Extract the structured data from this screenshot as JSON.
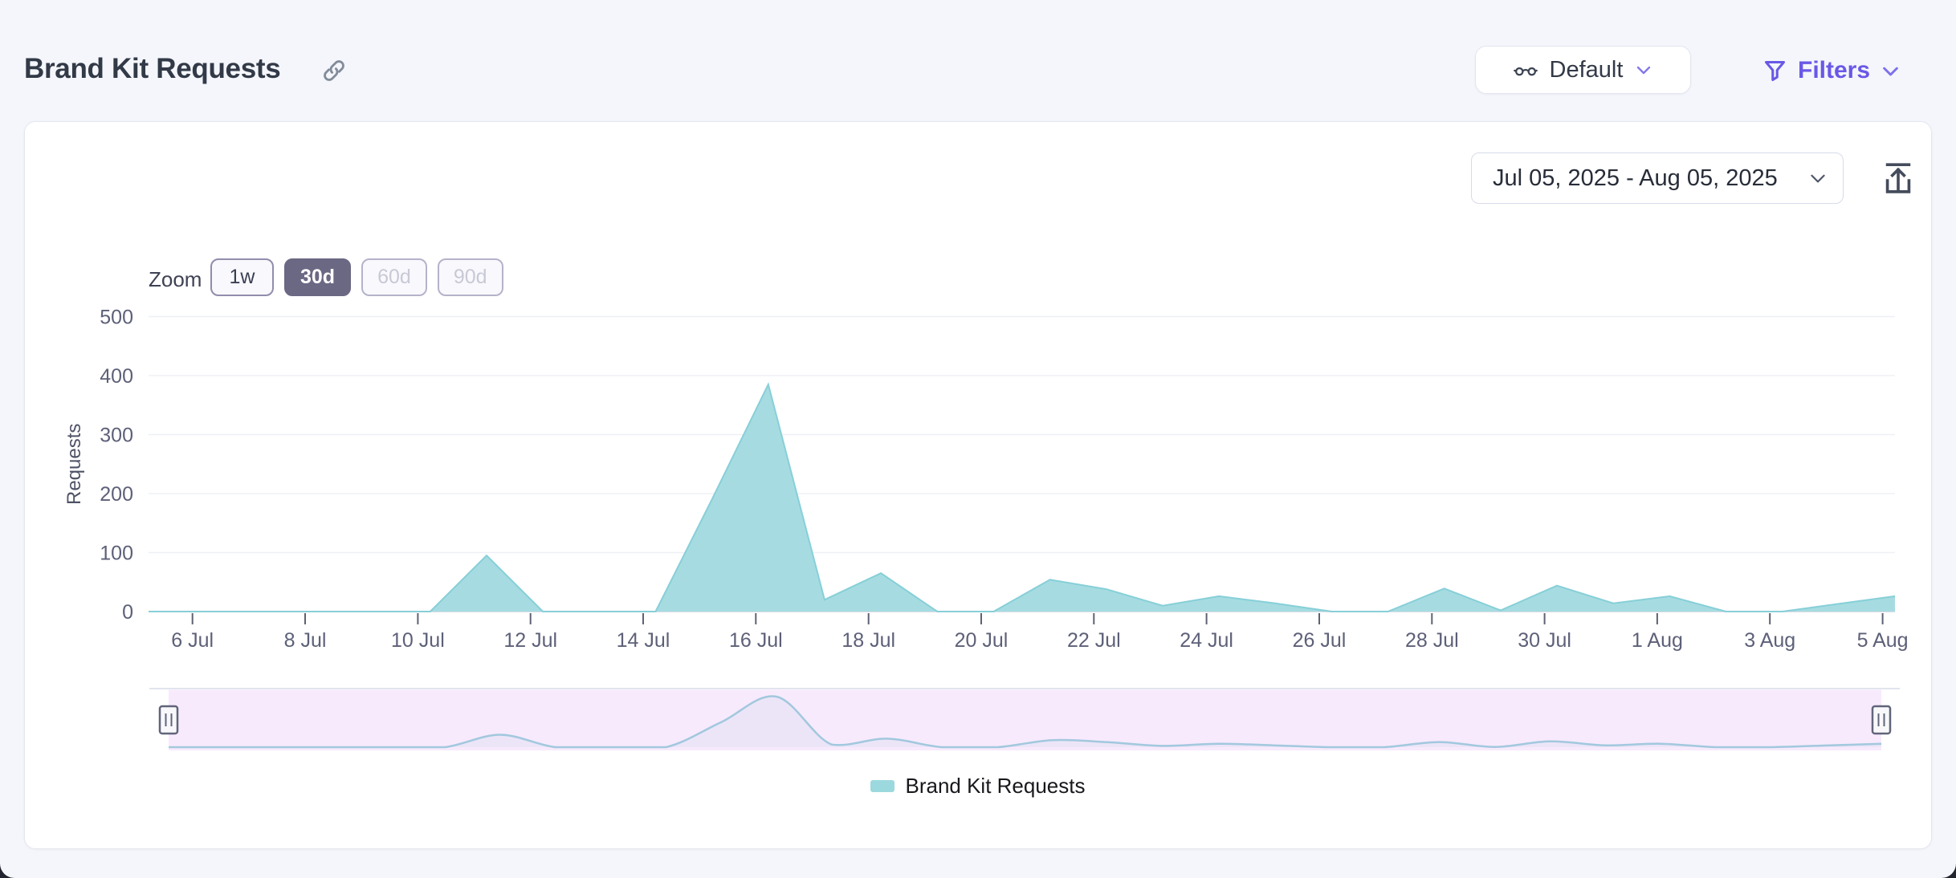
{
  "header": {
    "title": "Brand Kit Requests",
    "link_icon": "link-icon",
    "view_selector": {
      "icon": "glasses-icon",
      "label": "Default"
    },
    "filters": {
      "icon": "funnel-icon",
      "label": "Filters"
    }
  },
  "toolbar": {
    "date_range": "Jul 05, 2025 - Aug 05, 2025",
    "export_icon": "export-icon"
  },
  "zoom_controls": {
    "label": "Zoom",
    "options": [
      {
        "label": "1w",
        "state": "default"
      },
      {
        "label": "30d",
        "state": "selected"
      },
      {
        "label": "60d",
        "state": "disabled"
      },
      {
        "label": "90d",
        "state": "disabled"
      }
    ]
  },
  "legend": {
    "series_label": "Brand Kit Requests",
    "swatch_color": "#9cd9de"
  },
  "chart_data": {
    "type": "area",
    "title": "Brand Kit Requests",
    "series": [
      {
        "name": "Brand Kit Requests",
        "values": [
          0,
          0,
          0,
          0,
          0,
          0,
          95,
          0,
          0,
          0,
          190,
          385,
          20,
          65,
          0,
          0,
          54,
          38,
          10,
          26,
          14,
          0,
          0,
          39,
          2,
          44,
          14,
          26,
          0,
          0,
          13,
          26
        ]
      }
    ],
    "x": [
      "Jul 5",
      "Jul 6",
      "Jul 7",
      "Jul 8",
      "Jul 9",
      "Jul 10",
      "Jul 11",
      "Jul 12",
      "Jul 13",
      "Jul 14",
      "Jul 15",
      "Jul 16",
      "Jul 17",
      "Jul 18",
      "Jul 19",
      "Jul 20",
      "Jul 21",
      "Jul 22",
      "Jul 23",
      "Jul 24",
      "Jul 25",
      "Jul 26",
      "Jul 27",
      "Jul 28",
      "Jul 29",
      "Jul 30",
      "Jul 31",
      "Aug 1",
      "Aug 2",
      "Aug 3",
      "Aug 4",
      "Aug 5"
    ],
    "xtick_labels": [
      "6 Jul",
      "8 Jul",
      "10 Jul",
      "12 Jul",
      "14 Jul",
      "16 Jul",
      "18 Jul",
      "20 Jul",
      "22 Jul",
      "24 Jul",
      "26 Jul",
      "28 Jul",
      "30 Jul",
      "1 Aug",
      "3 Aug",
      "5 Aug"
    ],
    "xlabel": "",
    "ylabel": "Requests",
    "ylim": [
      0,
      500
    ],
    "yticks": [
      0,
      100,
      200,
      300,
      400,
      500
    ],
    "grid": true,
    "legend_position": "bottom",
    "navigator": true,
    "date_range_start": "Jul 05, 2025",
    "date_range_end": "Aug 05, 2025",
    "colors": {
      "area_fill": "#a6dce1",
      "area_line": "#87cfd8",
      "navigator_line": "#a2c8de",
      "navigator_selection": "#f7eafc",
      "grid_line": "#eef0f6",
      "axis_line": "#d9dbe5",
      "tick_mark": "#5d6274"
    }
  }
}
